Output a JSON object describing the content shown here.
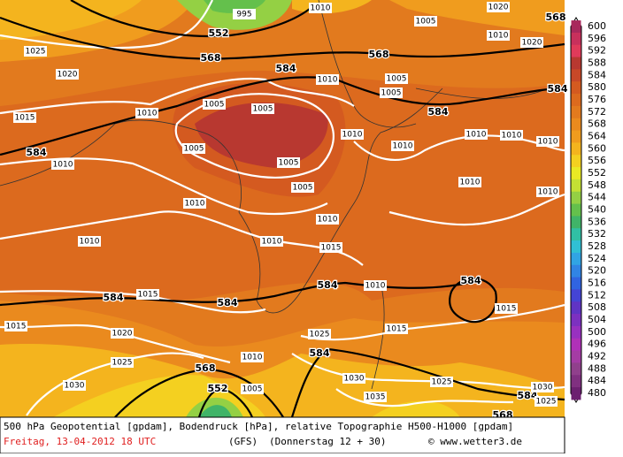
{
  "caption": {
    "line1": "500 hPa Geopotential [gpdam], Bodendruck [hPa], relative Topographie H500-H1000 [gpdam]",
    "date": "Freitag, 13-04-2012  18 UTC",
    "model": "(GFS)",
    "run": "(Donnerstag 12 + 30)",
    "credit": "© www.wetter3.de"
  },
  "legend": {
    "levels": [
      600,
      596,
      592,
      588,
      584,
      580,
      576,
      572,
      568,
      564,
      560,
      556,
      552,
      548,
      544,
      540,
      536,
      532,
      528,
      524,
      520,
      516,
      512,
      508,
      504,
      500,
      496,
      492,
      488,
      484,
      480
    ],
    "colors": [
      "#a8285c",
      "#c8305c",
      "#e03a5a",
      "#b83830",
      "#c84828",
      "#d45a20",
      "#dc6a1e",
      "#e27a1e",
      "#ea8a1e",
      "#f09c1e",
      "#f4b41e",
      "#f4d020",
      "#eaea24",
      "#c4e034",
      "#94d044",
      "#64c04c",
      "#40b468",
      "#30c0a4",
      "#30c0d4",
      "#30a4e4",
      "#3084e4",
      "#3064e0",
      "#4444d4",
      "#6034c4",
      "#7c30c0",
      "#9830c0",
      "#b030b8",
      "#a43ca4",
      "#90408c",
      "#803080",
      "#6c2070"
    ]
  },
  "map": {
    "geopotential_labels": [
      552,
      568,
      584,
      568,
      584,
      584,
      584,
      568,
      584,
      584,
      584,
      584,
      584,
      568,
      552,
      584,
      568
    ],
    "pressure_labels": [
      995,
      1010,
      1005,
      1025,
      1020,
      1015,
      1010,
      1005,
      1005,
      1010,
      1005,
      1005,
      1010,
      1005,
      1010,
      1010,
      1010,
      1010,
      1015,
      1005,
      1005,
      1010,
      1010,
      1010,
      1010,
      1010,
      1010,
      1010,
      1015,
      1015,
      1015,
      1015,
      1020,
      1025,
      1025,
      1010,
      1030,
      1030,
      1035,
      1025,
      1030,
      1025,
      1005,
      1010,
      1020,
      1010,
      1020
    ]
  }
}
